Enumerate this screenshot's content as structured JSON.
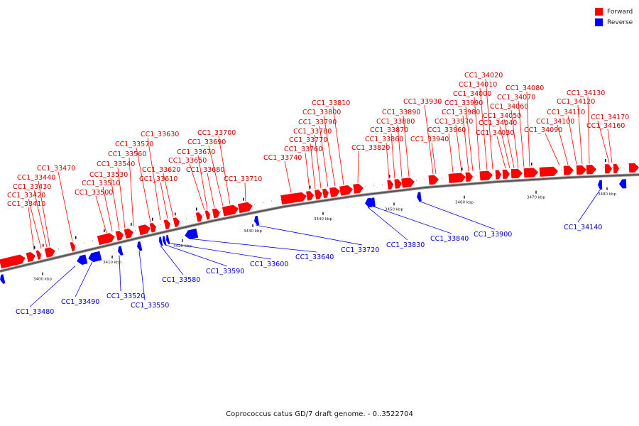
{
  "legend": {
    "forward": {
      "label": "Forward",
      "color": "#ff0000"
    },
    "reverse": {
      "label": "Reverse",
      "color": "#0000ff"
    }
  },
  "caption": "Coprococcus catus GD/7 draft genome. - 0..3522704",
  "scale": {
    "unit": "kbp",
    "ticks": [
      "3400 kbp",
      "3410 kbp",
      "3420 kbp",
      "3430 kbp",
      "3440 kbp",
      "3450 kbp",
      "3460 kbp",
      "3470 kbp",
      "3480 kbp"
    ]
  },
  "forward_genes": [
    "CC1_33410",
    "CC1_33420",
    "CC1_33430",
    "CC1_33440",
    "CC1_33470",
    "CC1_33500",
    "CC1_33510",
    "CC1_33530",
    "CC1_33540",
    "CC1_33560",
    "CC1_33570",
    "CC1_33610",
    "CC1_33620",
    "CC1_33630",
    "CC1_33650",
    "CC1_33670",
    "CC1_33680",
    "CC1_33690",
    "CC1_33700",
    "CC1_33710",
    "CC1_33740",
    "CC1_33760",
    "CC1_33770",
    "CC1_33780",
    "CC1_33790",
    "CC1_33800",
    "CC1_33810",
    "CC1_33820",
    "CC1_33860",
    "CC1_33870",
    "CC1_33880",
    "CC1_33890",
    "CC1_33930",
    "CC1_33940",
    "CC1_33960",
    "CC1_33970",
    "CC1_33980",
    "CC1_33990",
    "CC1_34000",
    "CC1_34010",
    "CC1_34020",
    "CC1_34030",
    "CC1_34040",
    "CC1_34050",
    "CC1_34060",
    "CC1_34070",
    "CC1_34080",
    "CC1_34090",
    "CC1_34100",
    "CC1_34110",
    "CC1_34120",
    "CC1_34130",
    "CC1_34160",
    "CC1_34170"
  ],
  "reverse_genes": [
    "CC1_33480",
    "CC1_33490",
    "CC1_33520",
    "CC1_33550",
    "CC1_33580",
    "CC1_33590",
    "CC1_33600",
    "CC1_33640",
    "CC1_33720",
    "CC1_33830",
    "CC1_33840",
    "CC1_33900",
    "CC1_34140"
  ]
}
